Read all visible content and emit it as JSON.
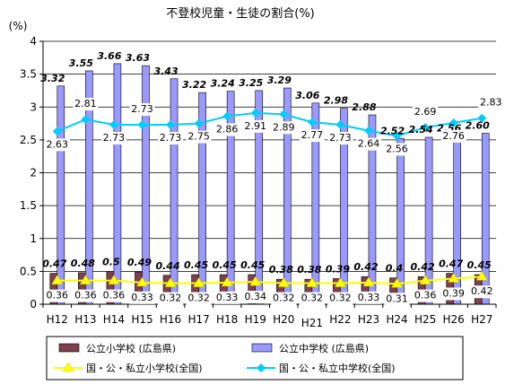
{
  "chart_data": {
    "type": "bar",
    "title": "不登校児童・生徒の割合(%)",
    "unit_label": "(%)",
    "ylim": [
      0,
      4
    ],
    "yticks": [
      "0",
      "0.5",
      "1",
      "1.5",
      "2",
      "2.5",
      "3",
      "3.5",
      "4"
    ],
    "categories": [
      "H12",
      "H13",
      "H14",
      "H15",
      "H16",
      "H17",
      "H18",
      "H19",
      "H20",
      "H21",
      "H22",
      "H23",
      "H24",
      "H25",
      "H26",
      "H27"
    ],
    "series": [
      {
        "name": "公立小学校 (広島県)",
        "kind": "bar",
        "color": "#7f3f4f",
        "values": [
          0.47,
          0.48,
          0.5,
          0.49,
          0.44,
          0.45,
          0.45,
          0.45,
          0.38,
          0.38,
          0.39,
          0.42,
          0.4,
          0.42,
          0.47,
          0.45
        ],
        "labels": [
          "0.47",
          "0.48",
          "0.5",
          "0.49",
          "0.44",
          "0.45",
          "0.45",
          "0.45",
          "0.38",
          "0.38",
          "0.39",
          "0.42",
          "0.4",
          "0.42",
          "0.47",
          "0.45"
        ]
      },
      {
        "name": "公立中学校 (広島県)",
        "kind": "bar",
        "color": "#9999ff",
        "values": [
          3.32,
          3.55,
          3.66,
          3.63,
          3.43,
          3.22,
          3.24,
          3.25,
          3.29,
          3.06,
          2.98,
          2.88,
          2.52,
          2.54,
          2.56,
          2.6
        ],
        "labels": [
          "3.32",
          "3.55",
          "3.66",
          "3.63",
          "3.43",
          "3.22",
          "3.24",
          "3.25",
          "3.29",
          "3.06",
          "2.98",
          "2.88",
          "2.52",
          "2.54",
          "2.56",
          "2.60"
        ]
      },
      {
        "name": "国・公・私立小学校(全国)",
        "kind": "line",
        "color": "#ffff00",
        "values": [
          0.36,
          0.36,
          0.36,
          0.33,
          0.32,
          0.32,
          0.33,
          0.34,
          0.32,
          0.32,
          0.32,
          0.33,
          0.31,
          0.36,
          0.39,
          0.42
        ],
        "labels": [
          "0.36",
          "0.36",
          "0.36",
          "0.33",
          "0.32",
          "0.32",
          "0.33",
          "0.34",
          "0.32",
          "0.32",
          "0.32",
          "0.33",
          "0.31",
          "0.36",
          "0.39",
          "0.42"
        ]
      },
      {
        "name": "国・公・私立中学校(全国)",
        "kind": "line",
        "color": "#00ccff",
        "values": [
          2.63,
          2.81,
          2.73,
          2.73,
          2.73,
          2.75,
          2.86,
          2.91,
          2.89,
          2.77,
          2.73,
          2.64,
          2.56,
          2.69,
          2.76,
          2.83
        ],
        "labels": [
          "2.63",
          "2.81",
          "2.73",
          "2.73",
          "2.73",
          "2.75",
          "2.86",
          "2.91",
          "2.89",
          "2.77",
          "2.73",
          "2.64",
          "2.56",
          "2.69",
          "2.76",
          "2.83"
        ]
      }
    ],
    "legend_position": "bottom",
    "grid": true
  }
}
